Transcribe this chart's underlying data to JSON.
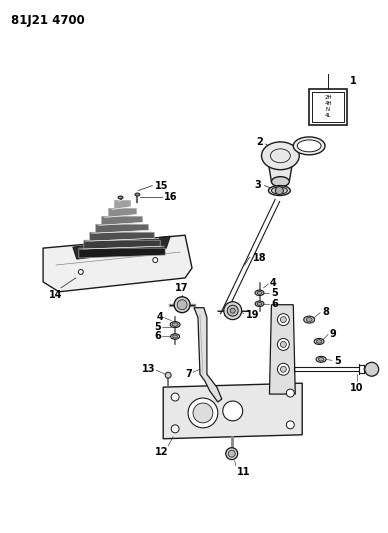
{
  "title": "81J21 4700",
  "bg_color": "#ffffff",
  "lc": "#1a1a1a",
  "label_fontsize": 7.0,
  "title_fontsize": 8.5,
  "figsize": [
    3.88,
    5.33
  ],
  "dpi": 100,
  "shift_pattern": [
    "2H",
    "4H",
    "N",
    "4L"
  ]
}
